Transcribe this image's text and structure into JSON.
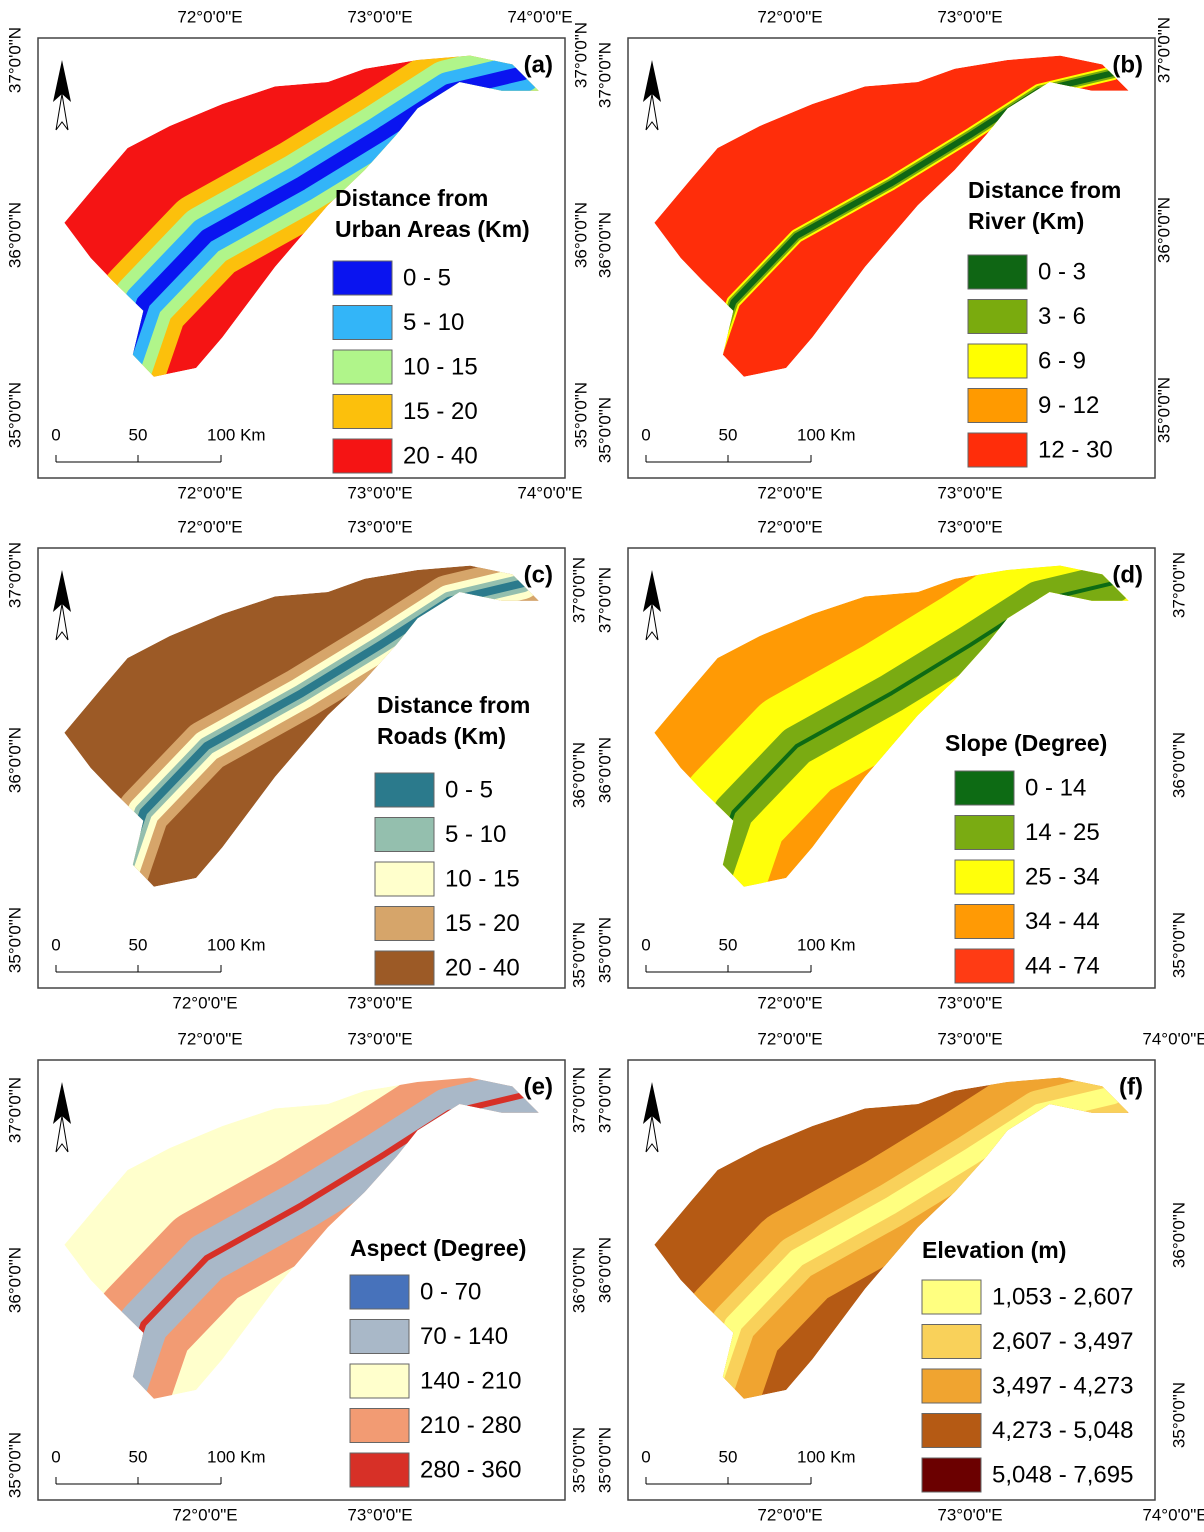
{
  "panels": [
    {
      "label": "(a)",
      "lon_top": [
        "72°0'0\"E",
        "73°0'0\"E",
        "74°0'0\"E"
      ],
      "lon_bottom": [
        "72°0'0\"E",
        "73°0'0\"E",
        "74°0'0\"E"
      ],
      "lat_left": [
        "37°0'0\"N",
        "36°0'0\"N",
        "35°0'0\"N"
      ],
      "lat_right": [
        "37°0'0\"N",
        "36°0'0\"N",
        "35°0'0\"N"
      ],
      "scale": [
        "0",
        "50",
        "100 Km"
      ],
      "legend_title": [
        "Distance from",
        "Urban Areas (Km)"
      ],
      "legend": [
        {
          "label": "0 - 5",
          "color": "#0a14f0"
        },
        {
          "label": "5 - 10",
          "color": "#33b5f8"
        },
        {
          "label": "10 - 15",
          "color": "#b0f58a"
        },
        {
          "label": "15 - 20",
          "color": "#fcc00c"
        },
        {
          "label": "20 - 40",
          "color": "#f51414"
        }
      ]
    },
    {
      "label": "(b)",
      "lon_top": [
        "72°0'0\"E",
        "73°0'0\"E"
      ],
      "lon_bottom": [
        "72°0'0\"E",
        "73°0'0\"E"
      ],
      "lat_left": [
        "37°0'0\"N",
        "36°0'0\"N",
        "35°0'0\"N"
      ],
      "lat_right": [
        "37°0'0\"N",
        "36°0'0\"N",
        "35°0'0\"N"
      ],
      "scale": [
        "0",
        "50",
        "100 Km"
      ],
      "legend_title": [
        "Distance from",
        "River (Km)"
      ],
      "legend": [
        {
          "label": "0 - 3",
          "color": "#0f6614"
        },
        {
          "label": "3 - 6",
          "color": "#7aab0e"
        },
        {
          "label": "6 - 9",
          "color": "#ffff00"
        },
        {
          "label": "9 - 12",
          "color": "#ff9a00"
        },
        {
          "label": "12 - 30",
          "color": "#ff2d0a"
        }
      ]
    },
    {
      "label": "(c)",
      "lon_top": [
        "72°0'0\"E",
        "73°0'0\"E"
      ],
      "lon_bottom": [
        "72°0'0\"E",
        "73°0'0\"E"
      ],
      "lat_left": [
        "37°0'0\"N",
        "36°0'0\"N",
        "35°0'0\"N"
      ],
      "lat_right": [
        "37°0'0\"N",
        "36°0'0\"N",
        "35°0'0\"N"
      ],
      "scale": [
        "0",
        "50",
        "100 Km"
      ],
      "legend_title": [
        "Distance from",
        "Roads (Km)"
      ],
      "legend": [
        {
          "label": "0 - 5",
          "color": "#2b7a8c"
        },
        {
          "label": "5 - 10",
          "color": "#94bfae"
        },
        {
          "label": "10 - 15",
          "color": "#ffffcc"
        },
        {
          "label": "15 - 20",
          "color": "#d6a56a"
        },
        {
          "label": "20 - 40",
          "color": "#9c5a26"
        }
      ]
    },
    {
      "label": "(d)",
      "lon_top": [
        "72°0'0\"E",
        "73°0'0\"E"
      ],
      "lon_bottom": [
        "72°0'0\"E",
        "73°0'0\"E"
      ],
      "lat_left": [
        "37°0'0\"N",
        "36°0'0\"N",
        "35°0'0\"N"
      ],
      "lat_right": [
        "37°0'0\"N",
        "36°0'0\"N",
        "35°0'0\"N"
      ],
      "scale": [
        "0",
        "50",
        "100 Km"
      ],
      "legend_title": [
        "Slope (Degree)"
      ],
      "legend": [
        {
          "label": "0 - 14",
          "color": "#0d6b14"
        },
        {
          "label": "14 - 25",
          "color": "#7aab12"
        },
        {
          "label": "25 - 34",
          "color": "#ffff0a"
        },
        {
          "label": "34 - 44",
          "color": "#ff9a05"
        },
        {
          "label": "44 - 74",
          "color": "#ff3b14"
        }
      ]
    },
    {
      "label": "(e)",
      "lon_top": [
        "72°0'0\"E",
        "73°0'0\"E"
      ],
      "lon_bottom": [
        "72°0'0\"E",
        "73°0'0\"E"
      ],
      "lat_left": [
        "37°0'0\"N",
        "36°0'0\"N",
        "35°0'0\"N"
      ],
      "lat_right": [
        "37°0'0\"N",
        "36°0'0\"N",
        "35°0'0\"N"
      ],
      "scale": [
        "0",
        "50",
        "100 Km"
      ],
      "legend_title": [
        "Aspect (Degree)"
      ],
      "legend": [
        {
          "label": "0 - 70",
          "color": "#4772bb"
        },
        {
          "label": "70 - 140",
          "color": "#a9b8c8"
        },
        {
          "label": "140 - 210",
          "color": "#ffffcc"
        },
        {
          "label": "210 - 280",
          "color": "#f29b73"
        },
        {
          "label": "280 - 360",
          "color": "#d73027"
        }
      ]
    },
    {
      "label": "(f)",
      "lon_top": [
        "72°0'0\"E",
        "73°0'0\"E",
        "74°0'0\"E"
      ],
      "lon_bottom": [
        "72°0'0\"E",
        "73°0'0\"E",
        "74°0'0\"E"
      ],
      "lat_left": [
        "37°0'0\"N",
        "36°0'0\"N",
        "35°0'0\"N"
      ],
      "lat_right": [
        "36°0'0\"N",
        "35°0'0\"N"
      ],
      "scale": [
        "0",
        "50",
        "100 Km"
      ],
      "legend_title": [
        "Elevation (m)"
      ],
      "legend": [
        {
          "label": "1,053 - 2,607",
          "color": "#ffff80"
        },
        {
          "label": "2,607 - 3,497",
          "color": "#f9d15a"
        },
        {
          "label": "3,497 - 4,273",
          "color": "#f0a430"
        },
        {
          "label": "4,273 - 5,048",
          "color": "#b55a14"
        },
        {
          "label": "5,048 - 7,695",
          "color": "#6b0000"
        }
      ]
    }
  ]
}
